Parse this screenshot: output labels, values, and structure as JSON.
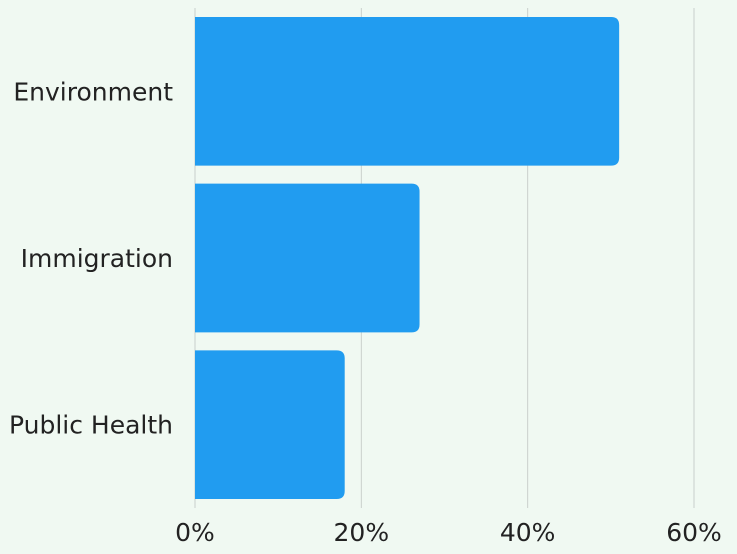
{
  "chart_data": {
    "type": "bar",
    "orientation": "horizontal",
    "categories": [
      "Environment",
      "Immigration",
      "Public Health"
    ],
    "values": [
      51,
      27,
      18
    ],
    "value_unit": "%",
    "xlim": [
      0,
      60
    ],
    "x_ticks": [
      "0%",
      "20%",
      "40%",
      "60%"
    ],
    "x_tick_values": [
      0,
      20,
      40,
      60
    ],
    "grid": "vertical",
    "title": "",
    "xlabel": "",
    "ylabel": "",
    "colors": {
      "bar": "#219cf0",
      "grid": "#c9d0cc",
      "background": "#f0f9f2",
      "text": "#222222"
    }
  }
}
